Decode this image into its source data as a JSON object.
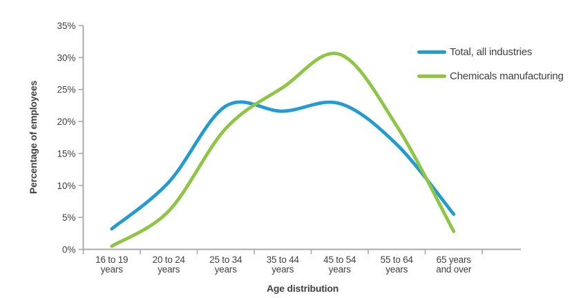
{
  "chart_data": {
    "type": "line",
    "title": "",
    "xlabel": "Age distribution",
    "ylabel": "Percentage of employees",
    "categories": [
      "16 to 19 years",
      "20 to 24 years",
      "25 to 34 years",
      "35 to 44 years",
      "45 to 54 years",
      "55 to 64 years",
      "65 years and over"
    ],
    "categories_wrapped": [
      [
        "16 to 19",
        "years"
      ],
      [
        "20 to 24",
        "years"
      ],
      [
        "25 to 34",
        "years"
      ],
      [
        "35 to 44",
        "years"
      ],
      [
        "45 to 54",
        "years"
      ],
      [
        "55 to 64",
        "years"
      ],
      [
        "65 years",
        "and over"
      ]
    ],
    "y_tick_labels": [
      "0%",
      "5%",
      "10%",
      "15%",
      "20%",
      "25%",
      "30%",
      "35%"
    ],
    "ylim": [
      0,
      35
    ],
    "y_tick_step": 5,
    "grid": false,
    "smooth": true,
    "legend_position": "top-right",
    "series": [
      {
        "name": "Total, all industries",
        "color": "#1E9CD7",
        "values": [
          3.2,
          10.5,
          22.4,
          21.6,
          22.8,
          16.4,
          5.5
        ]
      },
      {
        "name": "Chemicals manufacturing",
        "color": "#8DC63F",
        "values": [
          0.5,
          6.0,
          18.9,
          25.3,
          30.5,
          19.3,
          2.8
        ]
      }
    ],
    "colors": {
      "axis": "#A7A9AC",
      "text": "#414042"
    }
  }
}
